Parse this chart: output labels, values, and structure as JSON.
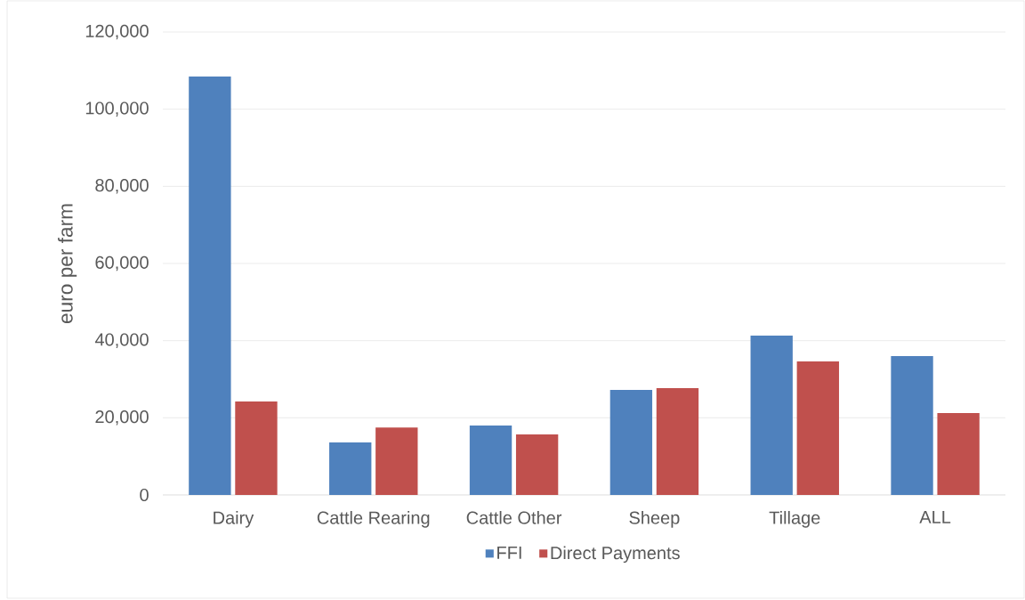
{
  "chart_data": {
    "type": "bar",
    "ylabel": "euro per farm",
    "categories": [
      "Dairy",
      "Cattle Rearing",
      "Cattle Other",
      "Sheep",
      "Tillage",
      "ALL"
    ],
    "series": [
      {
        "name": "FFI",
        "color": "#4f81bd",
        "values": [
          108500,
          13600,
          18000,
          27200,
          41300,
          36000
        ]
      },
      {
        "name": "Direct Payments",
        "color": "#c0504d",
        "values": [
          24200,
          17500,
          15700,
          27700,
          34600,
          21200
        ]
      }
    ],
    "ylim": [
      0,
      120000
    ],
    "yticks": [
      0,
      {
        "value": 20000,
        "label": "20,000"
      },
      {
        "value": 40000,
        "label": "40,000"
      },
      {
        "value": 60000,
        "label": "60,000"
      },
      {
        "value": 80000,
        "label": "80,000"
      },
      {
        "value": 100000,
        "label": "100,000"
      },
      {
        "value": 120000,
        "label": "120,000"
      }
    ],
    "grid": "y",
    "legend": "bottom"
  }
}
